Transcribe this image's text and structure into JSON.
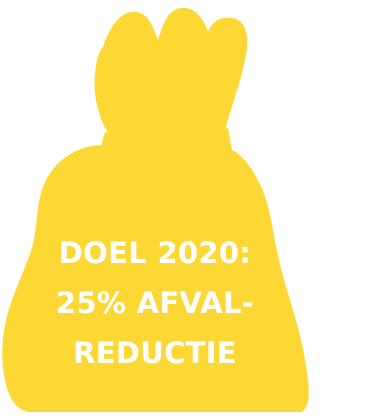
{
  "graphic": {
    "icon": "money-bag-icon",
    "color": "#fdd835",
    "text_color": "#ffffff",
    "lines": [
      "DOEL 2020:",
      "25% AFVAL-",
      "REDUCTIE"
    ]
  }
}
